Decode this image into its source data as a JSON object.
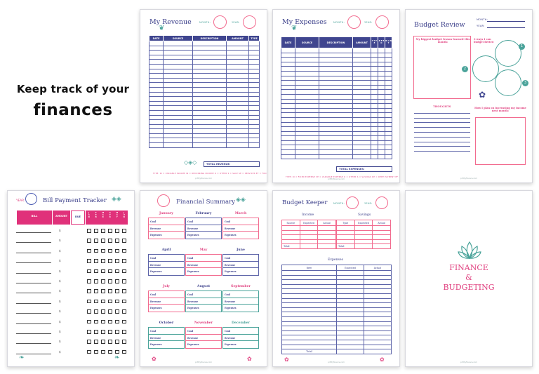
{
  "headline": {
    "line1": "Keep track of your",
    "line2": "finances"
  },
  "colors": {
    "navy": "#3f458f",
    "pink": "#f26b8f",
    "magenta": "#e0407f",
    "teal": "#4aa39a"
  },
  "revenue": {
    "title": "My Revenue",
    "month_label": "MONTH:",
    "year_label": "YEAR:",
    "columns": [
      "DATE",
      "SOURCE",
      "DESCRIPTION",
      "AMOUNT",
      "TYPE"
    ],
    "total_label": "TOTAL REVENUE:",
    "footer_links": "TYPE: RI = VARIABLE INCOME   IN = RECURRING INCOME   O = OTHER   S = SALE   SE = SERVICES   EF = FOOD",
    "site": "pr3ttyfinance.com"
  },
  "expenses": {
    "title": "My Expenses",
    "month_label": "MONTH:",
    "year_label": "YEAR:",
    "columns": [
      "DATE",
      "SOURCE",
      "DESCRIPTION",
      "AMOUNT",
      "T Y P E",
      "N E E D",
      "W A N T"
    ],
    "total_label": "TOTAL EXPENSES:",
    "footer_links": "TYPE: RI = FIXED EXPENSE   VE = VARIABLE EXPENSE   O = OTHER   S = SAVINGS   DP = DEBT PAYMENT   EF = FOOD",
    "site": "pr3ttyfinance.com"
  },
  "review": {
    "title": "Budget Review",
    "month_label": "MONTH:",
    "year_label": "YEAR:",
    "lesson_label": "My biggest budget lesson learned this month:",
    "ways_label": "3 ways I can budget better:",
    "ways_numbers": [
      "1",
      "2",
      "3"
    ],
    "thoughts_label": "THOUGHTS",
    "income_label": "How I plan on increasing my income next month:",
    "site": "pr3ttyfinance.com"
  },
  "bills": {
    "title": "Bill Payment Tracker",
    "year_label": "YEAR:",
    "columns": [
      "BILL",
      "AMOUNT",
      "DUE",
      "J A N",
      "F E B",
      "M A R",
      "A P R",
      "M A Y",
      "J U N"
    ],
    "dollar": "$",
    "row_count": 13
  },
  "summary": {
    "title": "Financial Summary",
    "months": [
      "January",
      "February",
      "March",
      "April",
      "May",
      "June",
      "July",
      "August",
      "September",
      "October",
      "November",
      "December"
    ],
    "rows": [
      "Goal",
      "Revenue",
      "Expenses"
    ],
    "site": "pr3ttyfinance.com"
  },
  "keeper": {
    "title": "Budget Keeper",
    "month_label": "MONTH:",
    "year_label": "YEAR:",
    "income_label": "Income",
    "savings_label": "Savings",
    "income_cols": [
      "Source",
      "Expected",
      "Actual"
    ],
    "savings_cols": [
      "Type",
      "Expected",
      "Actual"
    ],
    "total_label": "Total",
    "expenses_label": "Expenses",
    "expense_cols": [
      "Item",
      "Expected",
      "Actual"
    ],
    "site": "pr3ttyfinance.com"
  },
  "cover": {
    "line1": "FINANCE",
    "line2": "&",
    "line3": "BUDGETING",
    "site": "pr3ttyfinance.com"
  }
}
